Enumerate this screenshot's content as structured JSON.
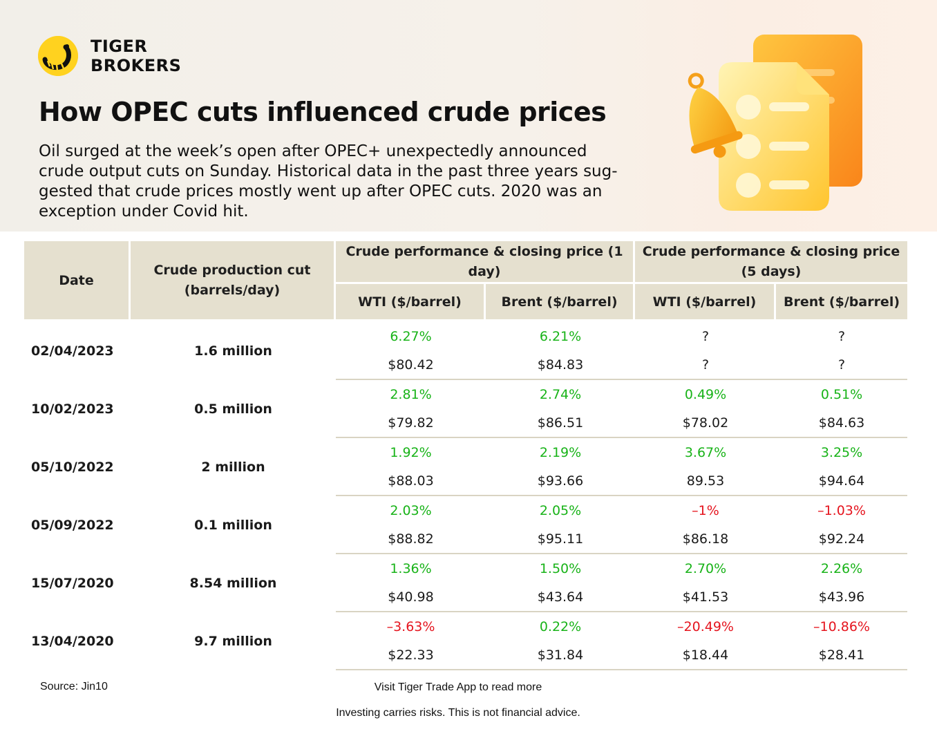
{
  "brand": {
    "name_line1": "TIGER",
    "name_line2": "BROKERS",
    "logo_color": "#ffd21f",
    "logo_icon": "tiger-brokers-logo-icon"
  },
  "title": "How OPEC cuts influenced crude prices",
  "intro": "Oil surged at the week’s open after OPEC+ unexpectedly announced crude output cuts on Sunday. Historical data in the past three years sug-gested that crude prices mostly went up after OPEC cuts. 2020 was an exception under Covid hit.",
  "illustration": {
    "icons": [
      "bell-icon",
      "document-icon"
    ]
  },
  "table": {
    "headers": {
      "date": "Date",
      "cut": "Crude production cut (barrels/day)",
      "group_1day": "Crude performance & closing price (1 day)",
      "group_5days": "Crude performance & closing price (5 days)",
      "wti": "WTI ($/barrel)",
      "brent": "Brent ($/barrel)"
    },
    "rows": [
      {
        "date": "02/04/2023",
        "cut": "1.6 million",
        "wti1_pct": "6.27%",
        "brent1_pct": "6.21%",
        "wti5_pct": "?",
        "brent5_pct": "?",
        "wti1_price": "$80.42",
        "brent1_price": "$84.83",
        "wti5_price": "?",
        "brent5_price": "?"
      },
      {
        "date": "10/02/2023",
        "cut": "0.5 million",
        "wti1_pct": "2.81%",
        "brent1_pct": "2.74%",
        "wti5_pct": "0.49%",
        "brent5_pct": "0.51%",
        "wti1_price": "$79.82",
        "brent1_price": "$86.51",
        "wti5_price": "$78.02",
        "brent5_price": "$84.63"
      },
      {
        "date": "05/10/2022",
        "cut": "2 million",
        "wti1_pct": "1.92%",
        "brent1_pct": "2.19%",
        "wti5_pct": "3.67%",
        "brent5_pct": "3.25%",
        "wti1_price": "$88.03",
        "brent1_price": "$93.66",
        "wti5_price": "89.53",
        "brent5_price": "$94.64"
      },
      {
        "date": "05/09/2022",
        "cut": "0.1 million",
        "wti1_pct": "2.03%",
        "brent1_pct": "2.05%",
        "wti5_pct": "–1%",
        "brent5_pct": "–1.03%",
        "wti1_price": "$88.82",
        "brent1_price": "$95.11",
        "wti5_price": "$86.18",
        "brent5_price": "$92.24"
      },
      {
        "date": "15/07/2020",
        "cut": "8.54 million",
        "wti1_pct": "1.36%",
        "brent1_pct": "1.50%",
        "wti5_pct": "2.70%",
        "brent5_pct": "2.26%",
        "wti1_price": "$40.98",
        "brent1_price": "$43.64",
        "wti5_price": "$41.53",
        "brent5_price": "$43.96"
      },
      {
        "date": "13/04/2020",
        "cut": "9.7 million",
        "wti1_pct": "–3.63%",
        "brent1_pct": "0.22%",
        "wti5_pct": "–20.49%",
        "brent5_pct": "–10.86%",
        "wti1_price": "$22.33",
        "brent1_price": "$31.84",
        "wti5_price": "$18.44",
        "brent5_price": "$28.41"
      }
    ],
    "colors": {
      "positive": "#18b318",
      "negative": "#e5141e",
      "header_bg": "#e5e0cf"
    }
  },
  "footer": {
    "source": "Source: Jin10",
    "cta": "Visit Tiger Trade App to read more",
    "disclaimer": "Investing carries risks. This is not financial advice."
  }
}
